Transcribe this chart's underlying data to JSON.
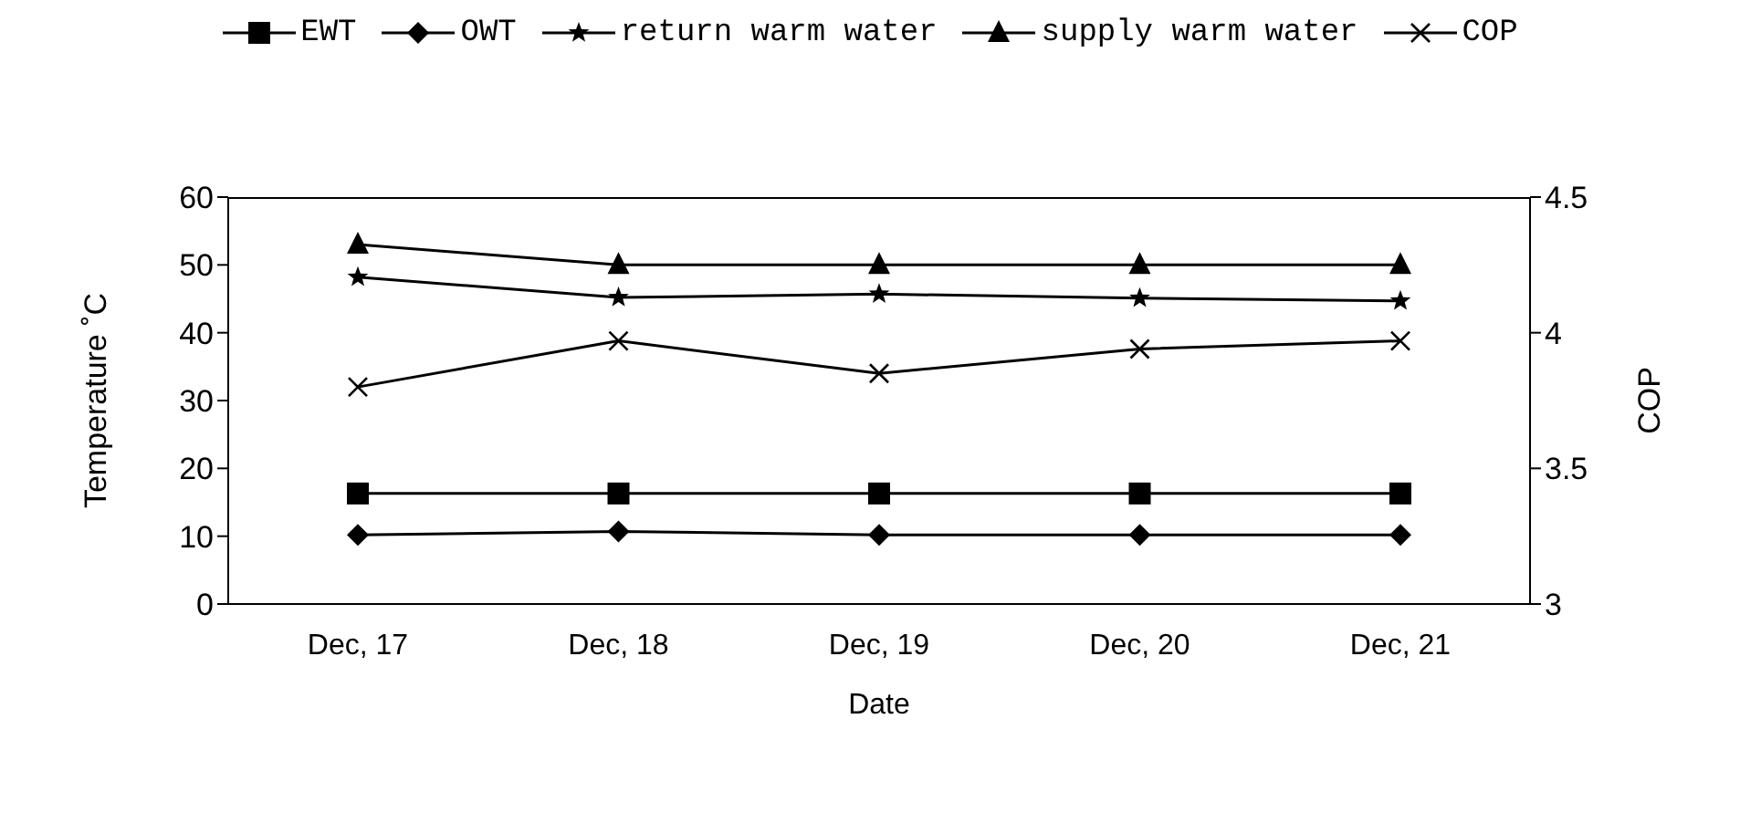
{
  "chart_data": {
    "type": "line",
    "xlabel": "Date",
    "ylabel": "Temperature ˚C",
    "y2label": "COP",
    "categories": [
      "Dec, 17",
      "Dec, 18",
      "Dec, 19",
      "Dec, 20",
      "Dec, 21"
    ],
    "series": [
      {
        "name": "EWT",
        "color": "#000000",
        "marker": "square",
        "values": [
          16.3,
          16.3,
          16.3,
          16.3,
          16.3
        ]
      },
      {
        "name": "OWT",
        "color": "#000000",
        "marker": "diamond",
        "values": [
          10.2,
          10.7,
          10.2,
          10.2,
          10.2
        ]
      },
      {
        "name": "return warm water",
        "color": "#000000",
        "marker": "star",
        "values": [
          48.2,
          45.2,
          45.7,
          45.1,
          44.7
        ]
      },
      {
        "name": "supply warm water",
        "color": "#000000",
        "marker": "triangle",
        "values": [
          53,
          50,
          50,
          50,
          50
        ]
      },
      {
        "name": "COP",
        "color": "#000000",
        "marker": "cross",
        "axis": "y2",
        "values": [
          3.8,
          3.97,
          3.85,
          3.94,
          3.97
        ]
      }
    ],
    "ylim": [
      0,
      60
    ],
    "yticks": [
      0,
      10,
      20,
      30,
      40,
      50,
      60
    ],
    "y2lim": [
      3,
      4.5
    ],
    "y2ticks": [
      3,
      3.5,
      4,
      4.5
    ],
    "grid": false,
    "legend": "top"
  }
}
